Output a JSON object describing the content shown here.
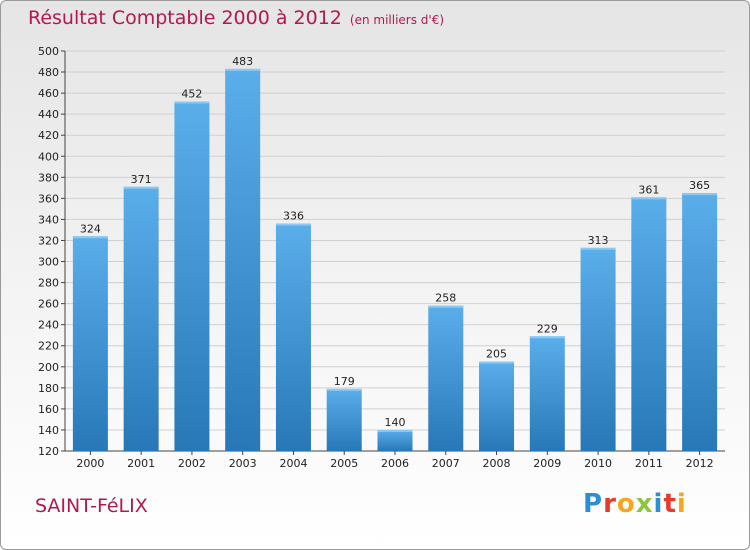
{
  "header": {
    "title": "Résultat Comptable 2000 à 2012",
    "subtitle": "(en milliers d'€)"
  },
  "footer": {
    "commune": "SAINT-FéLIX",
    "brand": "Proxiti",
    "brand_letters": [
      {
        "ch": "P",
        "color": "#2b8fd6"
      },
      {
        "ch": "r",
        "color": "#e8392b"
      },
      {
        "ch": "o",
        "color": "#f5a623"
      },
      {
        "ch": "x",
        "color": "#8cc63f"
      },
      {
        "ch": "i",
        "color": "#2b8fd6"
      },
      {
        "ch": "t",
        "color": "#e8392b"
      },
      {
        "ch": "i",
        "color": "#f5a623"
      }
    ]
  },
  "colors": {
    "title": "#b5174f",
    "bar_light": "#5aaeea",
    "bar_dark": "#2878b8",
    "grid": "#d0d0d0"
  },
  "chart_data": {
    "type": "bar",
    "title": "Résultat Comptable 2000 à 2012",
    "subtitle": "(en milliers d'€)",
    "xlabel": "",
    "ylabel": "",
    "categories": [
      "2000",
      "2001",
      "2002",
      "2003",
      "2004",
      "2005",
      "2006",
      "2007",
      "2008",
      "2009",
      "2010",
      "2011",
      "2012"
    ],
    "values": [
      324,
      371,
      452,
      483,
      336,
      179,
      140,
      258,
      205,
      229,
      313,
      361,
      365
    ],
    "ylim": [
      120,
      500
    ],
    "ytick_step": 20,
    "grid": true,
    "legend": "none"
  }
}
